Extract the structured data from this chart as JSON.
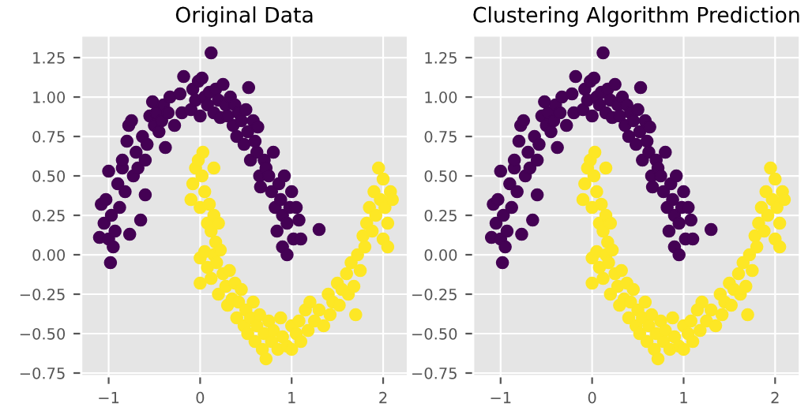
{
  "chart_data": [
    {
      "type": "scatter",
      "title": "Original Data",
      "xlim": [
        -1.3,
        2.27
      ],
      "ylim": [
        -0.77,
        1.39
      ],
      "xticks": [
        {
          "value": -1,
          "label": "−1"
        },
        0,
        1,
        2
      ],
      "yticks": [
        {
          "value": -0.75,
          "label": "−0.75"
        },
        {
          "value": -0.5,
          "label": "−0.50"
        },
        {
          "value": -0.25,
          "label": "−0.25"
        },
        {
          "value": 0,
          "label": "0.00"
        },
        {
          "value": 0.25,
          "label": "0.25"
        },
        {
          "value": 0.5,
          "label": "0.50"
        },
        {
          "value": 0.75,
          "label": "0.75"
        },
        {
          "value": 1.0,
          "label": "1.00"
        },
        {
          "value": 1.25,
          "label": "1.25"
        }
      ],
      "grid": true,
      "marker": "circle",
      "series": [
        {
          "color": "#440154",
          "x": [
            -1.1,
            -1.08,
            -1.05,
            -1.03,
            -1.0,
            -1.0,
            -0.98,
            -0.97,
            -0.95,
            -0.93,
            -0.9,
            -0.88,
            -0.85,
            -0.85,
            -0.82,
            -0.8,
            -0.78,
            -0.77,
            -0.75,
            -0.73,
            -0.7,
            -0.68,
            -0.65,
            -0.63,
            -0.6,
            -0.6,
            -0.58,
            -0.55,
            -0.52,
            -0.5,
            -0.48,
            -0.45,
            -0.42,
            -0.4,
            -0.38,
            -0.35,
            -0.33,
            -0.28,
            -0.22,
            -0.2,
            -0.18,
            -0.1,
            -0.08,
            -0.05,
            -0.02,
            0.0,
            0.02,
            0.05,
            0.08,
            0.1,
            0.12,
            0.15,
            0.17,
            0.2,
            0.22,
            0.25,
            0.28,
            0.3,
            0.33,
            0.36,
            0.38,
            0.4,
            0.42,
            0.45,
            0.48,
            0.5,
            0.52,
            0.53,
            0.55,
            0.58,
            0.6,
            0.62,
            0.63,
            0.65,
            0.66,
            0.7,
            0.72,
            0.75,
            0.78,
            0.8,
            0.82,
            0.84,
            0.86,
            0.88,
            0.9,
            0.9,
            0.92,
            0.95,
            0.95,
            0.98,
            1.0,
            1.02,
            1.05,
            1.08,
            1.1,
            1.3
          ],
          "values": [
            0.11,
            0.32,
            0.2,
            0.35,
            0.53,
            0.1,
            -0.05,
            0.25,
            0.05,
            0.15,
            0.45,
            0.3,
            0.55,
            0.6,
            0.4,
            0.72,
            0.82,
            0.13,
            0.85,
            0.5,
            0.65,
            0.55,
            0.22,
            0.75,
            0.6,
            0.38,
            0.7,
            0.88,
            0.97,
            0.82,
            0.9,
            0.78,
            0.85,
            0.95,
            0.68,
            0.9,
            1.0,
            0.82,
            1.02,
            0.9,
            1.13,
            0.92,
            1.05,
            0.98,
            1.1,
            0.88,
            1.12,
            1.0,
            0.95,
            1.03,
            1.28,
            0.9,
            1.05,
            0.98,
            0.87,
            1.08,
            0.95,
            0.88,
            1.0,
            0.82,
            0.95,
            0.75,
            0.9,
            0.85,
            0.7,
            0.92,
            0.78,
            1.06,
            0.6,
            0.85,
            0.72,
            0.65,
            0.81,
            0.5,
            0.43,
            0.6,
            0.55,
            0.5,
            0.4,
            0.65,
            0.3,
            0.15,
            0.45,
            0.35,
            0.25,
            0.05,
            0.5,
            0.2,
            0.0,
            0.3,
            0.4,
            0.1,
            0.3,
            0.22,
            0.1,
            0.16
          ]
        },
        {
          "color": "#fde725",
          "x": [
            -0.1,
            -0.08,
            -0.05,
            -0.02,
            0.0,
            0.02,
            0.03,
            0.05,
            0.08,
            0.1,
            0.12,
            0.15,
            0.15,
            0.17,
            0.2,
            0.0,
            0.0,
            0.05,
            0.08,
            0.12,
            0.15,
            0.18,
            0.2,
            0.22,
            0.25,
            0.28,
            0.3,
            0.32,
            0.35,
            0.38,
            0.4,
            0.42,
            0.45,
            0.48,
            0.5,
            0.52,
            0.55,
            0.58,
            0.6,
            0.62,
            0.65,
            0.68,
            0.7,
            0.72,
            0.75,
            0.78,
            0.8,
            0.85,
            0.88,
            0.9,
            0.95,
            1.0,
            1.0,
            1.05,
            1.08,
            1.1,
            1.15,
            1.18,
            1.2,
            1.25,
            1.3,
            1.35,
            1.4,
            1.42,
            1.45,
            1.5,
            1.52,
            1.55,
            1.6,
            1.62,
            1.65,
            1.68,
            1.7,
            1.72,
            1.75,
            1.78,
            1.8,
            1.82,
            1.85,
            1.88,
            1.9,
            1.92,
            1.95,
            1.97,
            2.0,
            2.0,
            2.02,
            2.05,
            2.05,
            2.08,
            2.1
          ],
          "values": [
            0.35,
            0.45,
            0.55,
            0.6,
            0.3,
            0.5,
            0.65,
            0.4,
            0.2,
            0.32,
            0.15,
            0.25,
            0.55,
            0.08,
            0.2,
            -0.02,
            -0.18,
            0.02,
            -0.08,
            -0.15,
            0.0,
            -0.05,
            -0.25,
            0.03,
            -0.12,
            -0.2,
            -0.32,
            -0.1,
            -0.28,
            -0.18,
            -0.4,
            -0.3,
            -0.22,
            -0.45,
            -0.35,
            -0.5,
            -0.4,
            -0.3,
            -0.55,
            -0.45,
            -0.38,
            -0.6,
            -0.5,
            -0.66,
            -0.42,
            -0.55,
            -0.48,
            -0.6,
            -0.4,
            -0.52,
            -0.58,
            -0.45,
            -0.6,
            -0.5,
            -0.42,
            -0.55,
            -0.35,
            -0.48,
            -0.3,
            -0.42,
            -0.35,
            -0.45,
            -0.25,
            -0.38,
            -0.3,
            -0.18,
            -0.32,
            -0.22,
            -0.12,
            -0.25,
            -0.05,
            -0.2,
            -0.38,
            0.0,
            -0.1,
            0.12,
            0.05,
            0.2,
            0.3,
            0.15,
            0.4,
            0.25,
            0.55,
            0.35,
            0.48,
            0.1,
            0.3,
            0.2,
            0.05,
            0.4,
            0.35
          ]
        }
      ]
    },
    {
      "type": "scatter",
      "title": "Clustering Algorithm Prediction",
      "xlim": [
        -1.3,
        2.27
      ],
      "ylim": [
        -0.77,
        1.39
      ],
      "xticks": [
        {
          "value": -1,
          "label": "−1"
        },
        0,
        1,
        2
      ],
      "yticks": [
        {
          "value": -0.75,
          "label": "−0.75"
        },
        {
          "value": -0.5,
          "label": "−0.50"
        },
        {
          "value": -0.25,
          "label": "−0.25"
        },
        {
          "value": 0,
          "label": "0.00"
        },
        {
          "value": 0.25,
          "label": "0.25"
        },
        {
          "value": 0.5,
          "label": "0.50"
        },
        {
          "value": 0.75,
          "label": "0.75"
        },
        {
          "value": 1.0,
          "label": "1.00"
        },
        {
          "value": 1.25,
          "label": "1.25"
        }
      ],
      "grid": true,
      "marker": "circle",
      "series": [
        {
          "color": "#440154",
          "x": [
            -1.1,
            -1.08,
            -1.05,
            -1.03,
            -1.0,
            -1.0,
            -0.98,
            -0.97,
            -0.95,
            -0.93,
            -0.9,
            -0.88,
            -0.85,
            -0.85,
            -0.82,
            -0.8,
            -0.78,
            -0.77,
            -0.75,
            -0.73,
            -0.7,
            -0.68,
            -0.65,
            -0.63,
            -0.6,
            -0.6,
            -0.58,
            -0.55,
            -0.52,
            -0.5,
            -0.48,
            -0.45,
            -0.42,
            -0.4,
            -0.38,
            -0.35,
            -0.33,
            -0.28,
            -0.22,
            -0.2,
            -0.18,
            -0.1,
            -0.08,
            -0.05,
            -0.02,
            0.0,
            0.02,
            0.05,
            0.08,
            0.1,
            0.12,
            0.15,
            0.17,
            0.2,
            0.22,
            0.25,
            0.28,
            0.3,
            0.33,
            0.36,
            0.38,
            0.4,
            0.42,
            0.45,
            0.48,
            0.5,
            0.52,
            0.53,
            0.55,
            0.58,
            0.6,
            0.62,
            0.63,
            0.65,
            0.66,
            0.7,
            0.72,
            0.75,
            0.78,
            0.8,
            0.82,
            0.84,
            0.86,
            0.88,
            0.9,
            0.9,
            0.92,
            0.95,
            0.95,
            0.98,
            1.0,
            1.02,
            1.05,
            1.08,
            1.1,
            1.3
          ],
          "values": [
            0.11,
            0.32,
            0.2,
            0.35,
            0.53,
            0.1,
            -0.05,
            0.25,
            0.05,
            0.15,
            0.45,
            0.3,
            0.55,
            0.6,
            0.4,
            0.72,
            0.82,
            0.13,
            0.85,
            0.5,
            0.65,
            0.55,
            0.22,
            0.75,
            0.6,
            0.38,
            0.7,
            0.88,
            0.97,
            0.82,
            0.9,
            0.78,
            0.85,
            0.95,
            0.68,
            0.9,
            1.0,
            0.82,
            1.02,
            0.9,
            1.13,
            0.92,
            1.05,
            0.98,
            1.1,
            0.88,
            1.12,
            1.0,
            0.95,
            1.03,
            1.28,
            0.9,
            1.05,
            0.98,
            0.87,
            1.08,
            0.95,
            0.88,
            1.0,
            0.82,
            0.95,
            0.75,
            0.9,
            0.85,
            0.7,
            0.92,
            0.78,
            1.06,
            0.6,
            0.85,
            0.72,
            0.65,
            0.81,
            0.5,
            0.43,
            0.6,
            0.55,
            0.5,
            0.4,
            0.65,
            0.3,
            0.15,
            0.45,
            0.35,
            0.25,
            0.05,
            0.5,
            0.2,
            0.0,
            0.3,
            0.4,
            0.1,
            0.3,
            0.22,
            0.1,
            0.16
          ]
        },
        {
          "color": "#fde725",
          "x": [
            -0.1,
            -0.08,
            -0.05,
            -0.02,
            0.0,
            0.02,
            0.03,
            0.05,
            0.08,
            0.1,
            0.12,
            0.15,
            0.15,
            0.17,
            0.2,
            0.0,
            0.0,
            0.05,
            0.08,
            0.12,
            0.15,
            0.18,
            0.2,
            0.22,
            0.25,
            0.28,
            0.3,
            0.32,
            0.35,
            0.38,
            0.4,
            0.42,
            0.45,
            0.48,
            0.5,
            0.52,
            0.55,
            0.58,
            0.6,
            0.62,
            0.65,
            0.68,
            0.7,
            0.72,
            0.75,
            0.78,
            0.8,
            0.85,
            0.88,
            0.9,
            0.95,
            1.0,
            1.0,
            1.05,
            1.08,
            1.1,
            1.15,
            1.18,
            1.2,
            1.25,
            1.3,
            1.35,
            1.4,
            1.42,
            1.45,
            1.5,
            1.52,
            1.55,
            1.6,
            1.62,
            1.65,
            1.68,
            1.7,
            1.72,
            1.75,
            1.78,
            1.8,
            1.82,
            1.85,
            1.88,
            1.9,
            1.92,
            1.95,
            1.97,
            2.0,
            2.0,
            2.02,
            2.05,
            2.05,
            2.08,
            2.1
          ],
          "values": [
            0.35,
            0.45,
            0.55,
            0.6,
            0.3,
            0.5,
            0.65,
            0.4,
            0.2,
            0.32,
            0.15,
            0.25,
            0.55,
            0.08,
            0.2,
            -0.02,
            -0.18,
            0.02,
            -0.08,
            -0.15,
            0.0,
            -0.05,
            -0.25,
            0.03,
            -0.12,
            -0.2,
            -0.32,
            -0.1,
            -0.28,
            -0.18,
            -0.4,
            -0.3,
            -0.22,
            -0.45,
            -0.35,
            -0.5,
            -0.4,
            -0.3,
            -0.55,
            -0.45,
            -0.38,
            -0.6,
            -0.5,
            -0.66,
            -0.42,
            -0.55,
            -0.48,
            -0.6,
            -0.4,
            -0.52,
            -0.58,
            -0.45,
            -0.6,
            -0.5,
            -0.42,
            -0.55,
            -0.35,
            -0.48,
            -0.3,
            -0.42,
            -0.35,
            -0.45,
            -0.25,
            -0.38,
            -0.3,
            -0.18,
            -0.32,
            -0.22,
            -0.12,
            -0.25,
            -0.05,
            -0.2,
            -0.38,
            0.0,
            -0.1,
            0.12,
            0.05,
            0.2,
            0.3,
            0.15,
            0.4,
            0.25,
            0.55,
            0.35,
            0.48,
            0.1,
            0.3,
            0.2,
            0.05,
            0.4,
            0.35
          ]
        }
      ]
    }
  ]
}
